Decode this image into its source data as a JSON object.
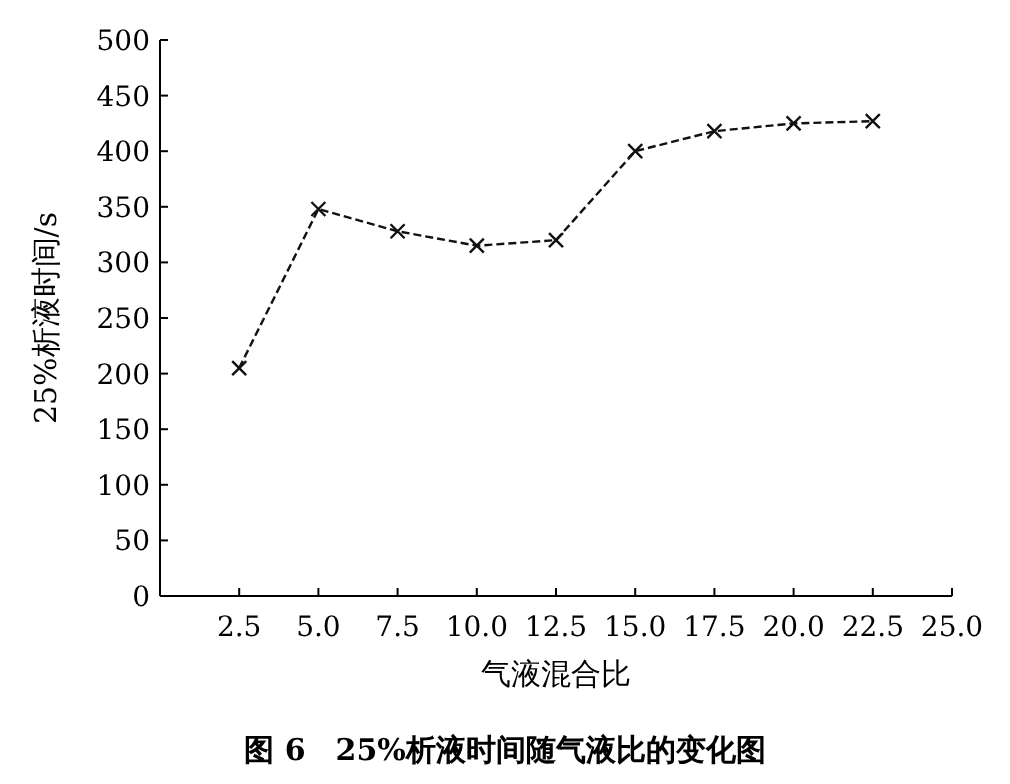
{
  "chart_data": {
    "type": "line",
    "title": "图 6　25%析液时间随气液比的变化图",
    "xlabel": "气液混合比",
    "ylabel": "25%析液时间/s",
    "x": [
      2.5,
      5.0,
      7.5,
      10.0,
      12.5,
      15.0,
      17.5,
      20.0,
      22.5
    ],
    "series": [
      {
        "color": "#111111",
        "values": [
          205,
          348,
          328,
          315,
          320,
          400,
          418,
          425,
          427
        ]
      }
    ],
    "xlim": [
      0,
      25
    ],
    "ylim": [
      0,
      500
    ],
    "xticks": [
      2.5,
      {
        "value": 5,
        "label": "5.0"
      },
      7.5,
      {
        "value": 10,
        "label": "10.0"
      },
      12.5,
      {
        "value": 15,
        "label": "15.0"
      },
      17.5,
      {
        "value": 20,
        "label": "20.0"
      },
      22.5,
      {
        "value": 25,
        "label": "25.0"
      }
    ],
    "yticks": [
      0,
      50,
      100,
      150,
      200,
      250,
      300,
      350,
      400,
      450,
      500
    ],
    "marker": "cross",
    "line_style": "dashed"
  }
}
